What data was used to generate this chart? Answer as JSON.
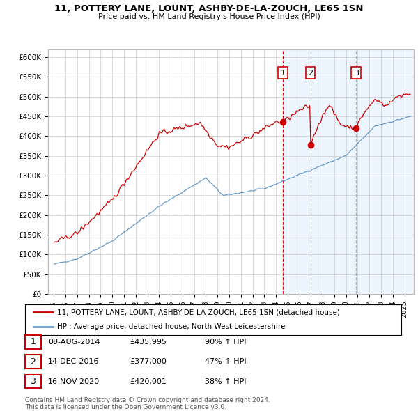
{
  "title": "11, POTTERY LANE, LOUNT, ASHBY-DE-LA-ZOUCH, LE65 1SN",
  "subtitle": "Price paid vs. HM Land Registry's House Price Index (HPI)",
  "legend_label_red": "11, POTTERY LANE, LOUNT, ASHBY-DE-LA-ZOUCH, LE65 1SN (detached house)",
  "legend_label_blue": "HPI: Average price, detached house, North West Leicestershire",
  "footer_line1": "Contains HM Land Registry data © Crown copyright and database right 2024.",
  "footer_line2": "This data is licensed under the Open Government Licence v3.0.",
  "transactions": [
    {
      "label": "1",
      "date": "08-AUG-2014",
      "price": "£435,995",
      "hpi": "90% ↑ HPI",
      "x": 2014.6
    },
    {
      "label": "2",
      "date": "14-DEC-2016",
      "price": "£377,000",
      "hpi": "47% ↑ HPI",
      "x": 2016.95
    },
    {
      "label": "3",
      "date": "16-NOV-2020",
      "price": "£420,001",
      "hpi": "38% ↑ HPI",
      "x": 2020.87
    }
  ],
  "transaction_prices": [
    435995,
    377000,
    420001
  ],
  "vline_styles": [
    "red_dashed",
    "gray_dashed",
    "gray_dashed"
  ],
  "ylim": [
    0,
    620000
  ],
  "yticks": [
    0,
    50000,
    100000,
    150000,
    200000,
    250000,
    300000,
    350000,
    400000,
    450000,
    500000,
    550000,
    600000
  ],
  "ytick_labels": [
    "£0",
    "£50K",
    "£100K",
    "£150K",
    "£200K",
    "£250K",
    "£300K",
    "£350K",
    "£400K",
    "£450K",
    "£500K",
    "£550K",
    "£600K"
  ],
  "red_color": "#cc0000",
  "blue_color": "#6699cc",
  "shade_color": "#ddeeff",
  "shade_start": 2014.6,
  "xlim": [
    1994.5,
    2025.8
  ]
}
